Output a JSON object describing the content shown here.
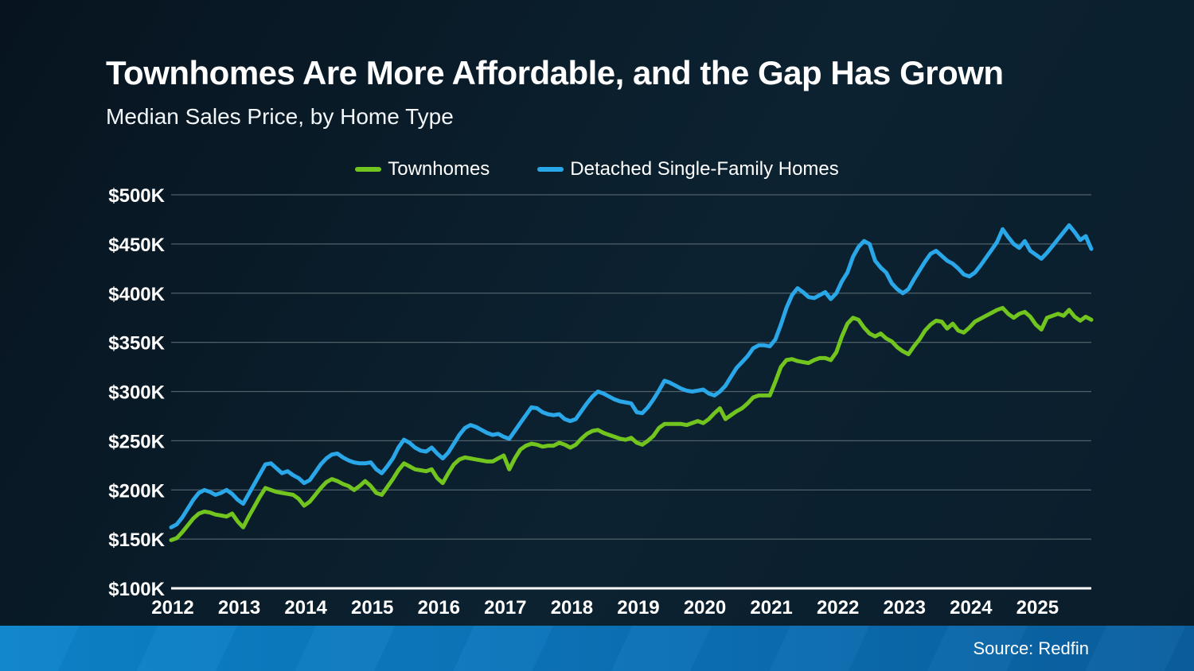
{
  "page": {
    "title": "Townhomes Are More Affordable, and the Gap Has Grown",
    "subtitle": "Median Sales Price, by Home Type",
    "source": "Source: Redfin"
  },
  "colors": {
    "background": "#0b2130",
    "townhomes_line": "#72c41e",
    "detached_line": "#29a7e8",
    "gridline": "#4f6069",
    "axis_line": "#ffffff",
    "text": "#ffffff",
    "footer_left": "#0d84cb",
    "footer_right": "#0a5f9f"
  },
  "chart_data": {
    "type": "line",
    "title": "Townhomes Are More Affordable, and the Gap Has Grown",
    "subtitle": "Median Sales Price, by Home Type",
    "x_unit": "month",
    "x_start": "2012-01",
    "x_end": "2025-11",
    "y_unit": "USD thousands (median sales price)",
    "ylim": [
      100,
      500
    ],
    "grid": true,
    "legend_position": "top-center",
    "x_tick_labels": [
      "2012",
      "2013",
      "2014",
      "2015",
      "2016",
      "2017",
      "2018",
      "2019",
      "2020",
      "2021",
      "2022",
      "2023",
      "2024",
      "2025"
    ],
    "y_ticks": [
      {
        "value": 500,
        "label": "$500K"
      },
      {
        "value": 450,
        "label": "$450K"
      },
      {
        "value": 400,
        "label": "$400K"
      },
      {
        "value": 350,
        "label": "$350K"
      },
      {
        "value": 300,
        "label": "$300K"
      },
      {
        "value": 250,
        "label": "$250K"
      },
      {
        "value": 200,
        "label": "$200K"
      },
      {
        "value": 150,
        "label": "$150K"
      },
      {
        "value": 100,
        "label": "$100K"
      }
    ],
    "series": [
      {
        "name": "Townhomes",
        "color": "#72c41e",
        "values": [
          149,
          151,
          157,
          164,
          171,
          176,
          178,
          177,
          175,
          174,
          173,
          176,
          168,
          162,
          173,
          183,
          193,
          202,
          200,
          198,
          197,
          196,
          195,
          191,
          184,
          188,
          195,
          202,
          208,
          211,
          209,
          206,
          204,
          200,
          204,
          209,
          204,
          197,
          195,
          203,
          211,
          220,
          227,
          224,
          221,
          220,
          219,
          221,
          212,
          207,
          217,
          226,
          231,
          233,
          232,
          231,
          230,
          229,
          229,
          232,
          235,
          221,
          232,
          241,
          245,
          247,
          246,
          244,
          245,
          245,
          248,
          246,
          243,
          246,
          252,
          257,
          260,
          261,
          258,
          256,
          254,
          252,
          251,
          253,
          248,
          246,
          250,
          255,
          263,
          267,
          267,
          267,
          267,
          266,
          268,
          270,
          268,
          272,
          278,
          283,
          272,
          276,
          280,
          283,
          288,
          294,
          296,
          296,
          296,
          310,
          325,
          332,
          333,
          331,
          330,
          329,
          332,
          334,
          334,
          332,
          340,
          356,
          369,
          375,
          373,
          365,
          359,
          356,
          359,
          354,
          351,
          345,
          341,
          338,
          346,
          353,
          362,
          368,
          372,
          371,
          364,
          369,
          362,
          360,
          365,
          371,
          374,
          377,
          380,
          383,
          385,
          379,
          375,
          379,
          381,
          376,
          368,
          363,
          375,
          377,
          379,
          377,
          383,
          376,
          372,
          376,
          373
        ]
      },
      {
        "name": "Detached Single-Family Homes",
        "color": "#29a7e8",
        "values": [
          162,
          165,
          172,
          181,
          190,
          197,
          200,
          198,
          195,
          197,
          200,
          196,
          190,
          186,
          196,
          206,
          216,
          226,
          227,
          222,
          217,
          219,
          215,
          212,
          207,
          210,
          218,
          226,
          232,
          236,
          237,
          233,
          230,
          228,
          227,
          227,
          228,
          221,
          217,
          224,
          232,
          243,
          251,
          248,
          243,
          240,
          239,
          243,
          237,
          232,
          238,
          247,
          256,
          263,
          266,
          264,
          261,
          258,
          256,
          257,
          254,
          252,
          260,
          268,
          276,
          284,
          283,
          279,
          277,
          276,
          277,
          272,
          270,
          272,
          280,
          288,
          295,
          300,
          298,
          295,
          292,
          290,
          289,
          288,
          279,
          278,
          284,
          292,
          301,
          311,
          309,
          306,
          303,
          301,
          300,
          301,
          302,
          298,
          296,
          300,
          306,
          315,
          324,
          330,
          336,
          344,
          347,
          347,
          346,
          353,
          368,
          385,
          398,
          405,
          401,
          396,
          395,
          398,
          401,
          394,
          400,
          412,
          421,
          437,
          447,
          453,
          450,
          433,
          426,
          421,
          410,
          404,
          400,
          404,
          414,
          423,
          432,
          440,
          443,
          438,
          433,
          430,
          425,
          419,
          417,
          421,
          428,
          436,
          444,
          452,
          465,
          457,
          450,
          446,
          453,
          443,
          439,
          435,
          441,
          448,
          455,
          462,
          469,
          462,
          454,
          458,
          445
        ]
      }
    ]
  }
}
